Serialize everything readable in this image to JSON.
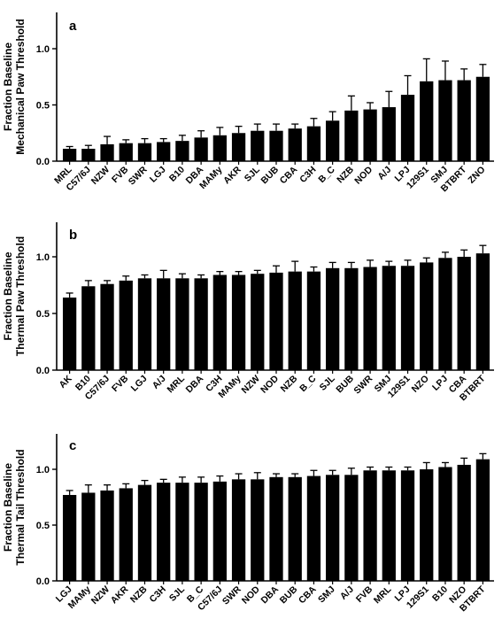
{
  "chart_data": [
    {
      "type": "bar",
      "panel": "a",
      "ylabel": [
        "Fraction Baseline",
        "Mechanical Paw Threshold"
      ],
      "ylim": [
        0,
        1.0
      ],
      "yticks": [
        "0.0",
        "0.5",
        "1.0"
      ],
      "categories": [
        "MRL",
        "C57/6J",
        "NZW",
        "FVB",
        "SWR",
        "LGJ",
        "B10",
        "DBA",
        "MAMy",
        "AKR",
        "SJL",
        "BUB",
        "CBA",
        "C3H",
        "B_C",
        "NZB",
        "NOD",
        "A/J",
        "LPJ",
        "129S1",
        "SMJ",
        "BTBRT",
        "ZNO"
      ],
      "values": [
        0.11,
        0.11,
        0.15,
        0.16,
        0.16,
        0.17,
        0.18,
        0.21,
        0.23,
        0.25,
        0.27,
        0.27,
        0.29,
        0.31,
        0.36,
        0.45,
        0.46,
        0.48,
        0.59,
        0.71,
        0.72,
        0.72,
        0.75
      ],
      "errors": [
        0.02,
        0.03,
        0.07,
        0.03,
        0.04,
        0.03,
        0.05,
        0.06,
        0.07,
        0.06,
        0.06,
        0.06,
        0.04,
        0.07,
        0.08,
        0.13,
        0.06,
        0.14,
        0.17,
        0.2,
        0.17,
        0.1,
        0.11
      ]
    },
    {
      "type": "bar",
      "panel": "b",
      "ylabel": [
        "Fraction Baseline",
        "Thermal Paw Threshold"
      ],
      "ylim": [
        0,
        1.0
      ],
      "yticks": [
        "0.0",
        "0.5",
        "1.0"
      ],
      "categories": [
        "AK",
        "B10",
        "C57/6J",
        "FVB",
        "LGJ",
        "A/J",
        "MRL",
        "DBA",
        "C3H",
        "MAMy",
        "NZW",
        "NOD",
        "NZB",
        "B_C",
        "SJL",
        "BUB",
        "SWR",
        "SMJ",
        "129S1",
        "NZO",
        "LPJ",
        "CBA",
        "BTBRT"
      ],
      "values": [
        0.64,
        0.74,
        0.76,
        0.79,
        0.81,
        0.81,
        0.81,
        0.81,
        0.84,
        0.84,
        0.85,
        0.86,
        0.87,
        0.87,
        0.9,
        0.9,
        0.91,
        0.92,
        0.92,
        0.95,
        0.99,
        1.0,
        1.03
      ],
      "errors": [
        0.04,
        0.05,
        0.03,
        0.04,
        0.03,
        0.07,
        0.04,
        0.03,
        0.03,
        0.03,
        0.03,
        0.06,
        0.09,
        0.04,
        0.05,
        0.05,
        0.06,
        0.04,
        0.05,
        0.04,
        0.05,
        0.06,
        0.07
      ]
    },
    {
      "type": "bar",
      "panel": "c",
      "ylabel": [
        "Fraction Baseline",
        "Thermal Tail Threshold"
      ],
      "ylim": [
        0,
        1.0
      ],
      "yticks": [
        "0.0",
        "0.5",
        "1.0"
      ],
      "categories": [
        "LGJ",
        "MAMy",
        "NZW",
        "AKR",
        "NZB",
        "C3H",
        "SJL",
        "B_C",
        "C57/6J",
        "SWR",
        "NOD",
        "DBA",
        "BUB",
        "CBA",
        "SMJ",
        "A/J",
        "FVB",
        "MRL",
        "LPJ",
        "129S1",
        "B10",
        "NZO",
        "BTBRT"
      ],
      "values": [
        0.77,
        0.79,
        0.81,
        0.83,
        0.86,
        0.88,
        0.88,
        0.88,
        0.89,
        0.91,
        0.91,
        0.93,
        0.93,
        0.94,
        0.95,
        0.95,
        0.99,
        0.99,
        0.99,
        1.0,
        1.02,
        1.04,
        1.09
      ],
      "errors": [
        0.04,
        0.07,
        0.05,
        0.04,
        0.04,
        0.03,
        0.05,
        0.05,
        0.05,
        0.05,
        0.06,
        0.03,
        0.03,
        0.05,
        0.04,
        0.06,
        0.03,
        0.03,
        0.03,
        0.06,
        0.04,
        0.06,
        0.05
      ]
    }
  ]
}
